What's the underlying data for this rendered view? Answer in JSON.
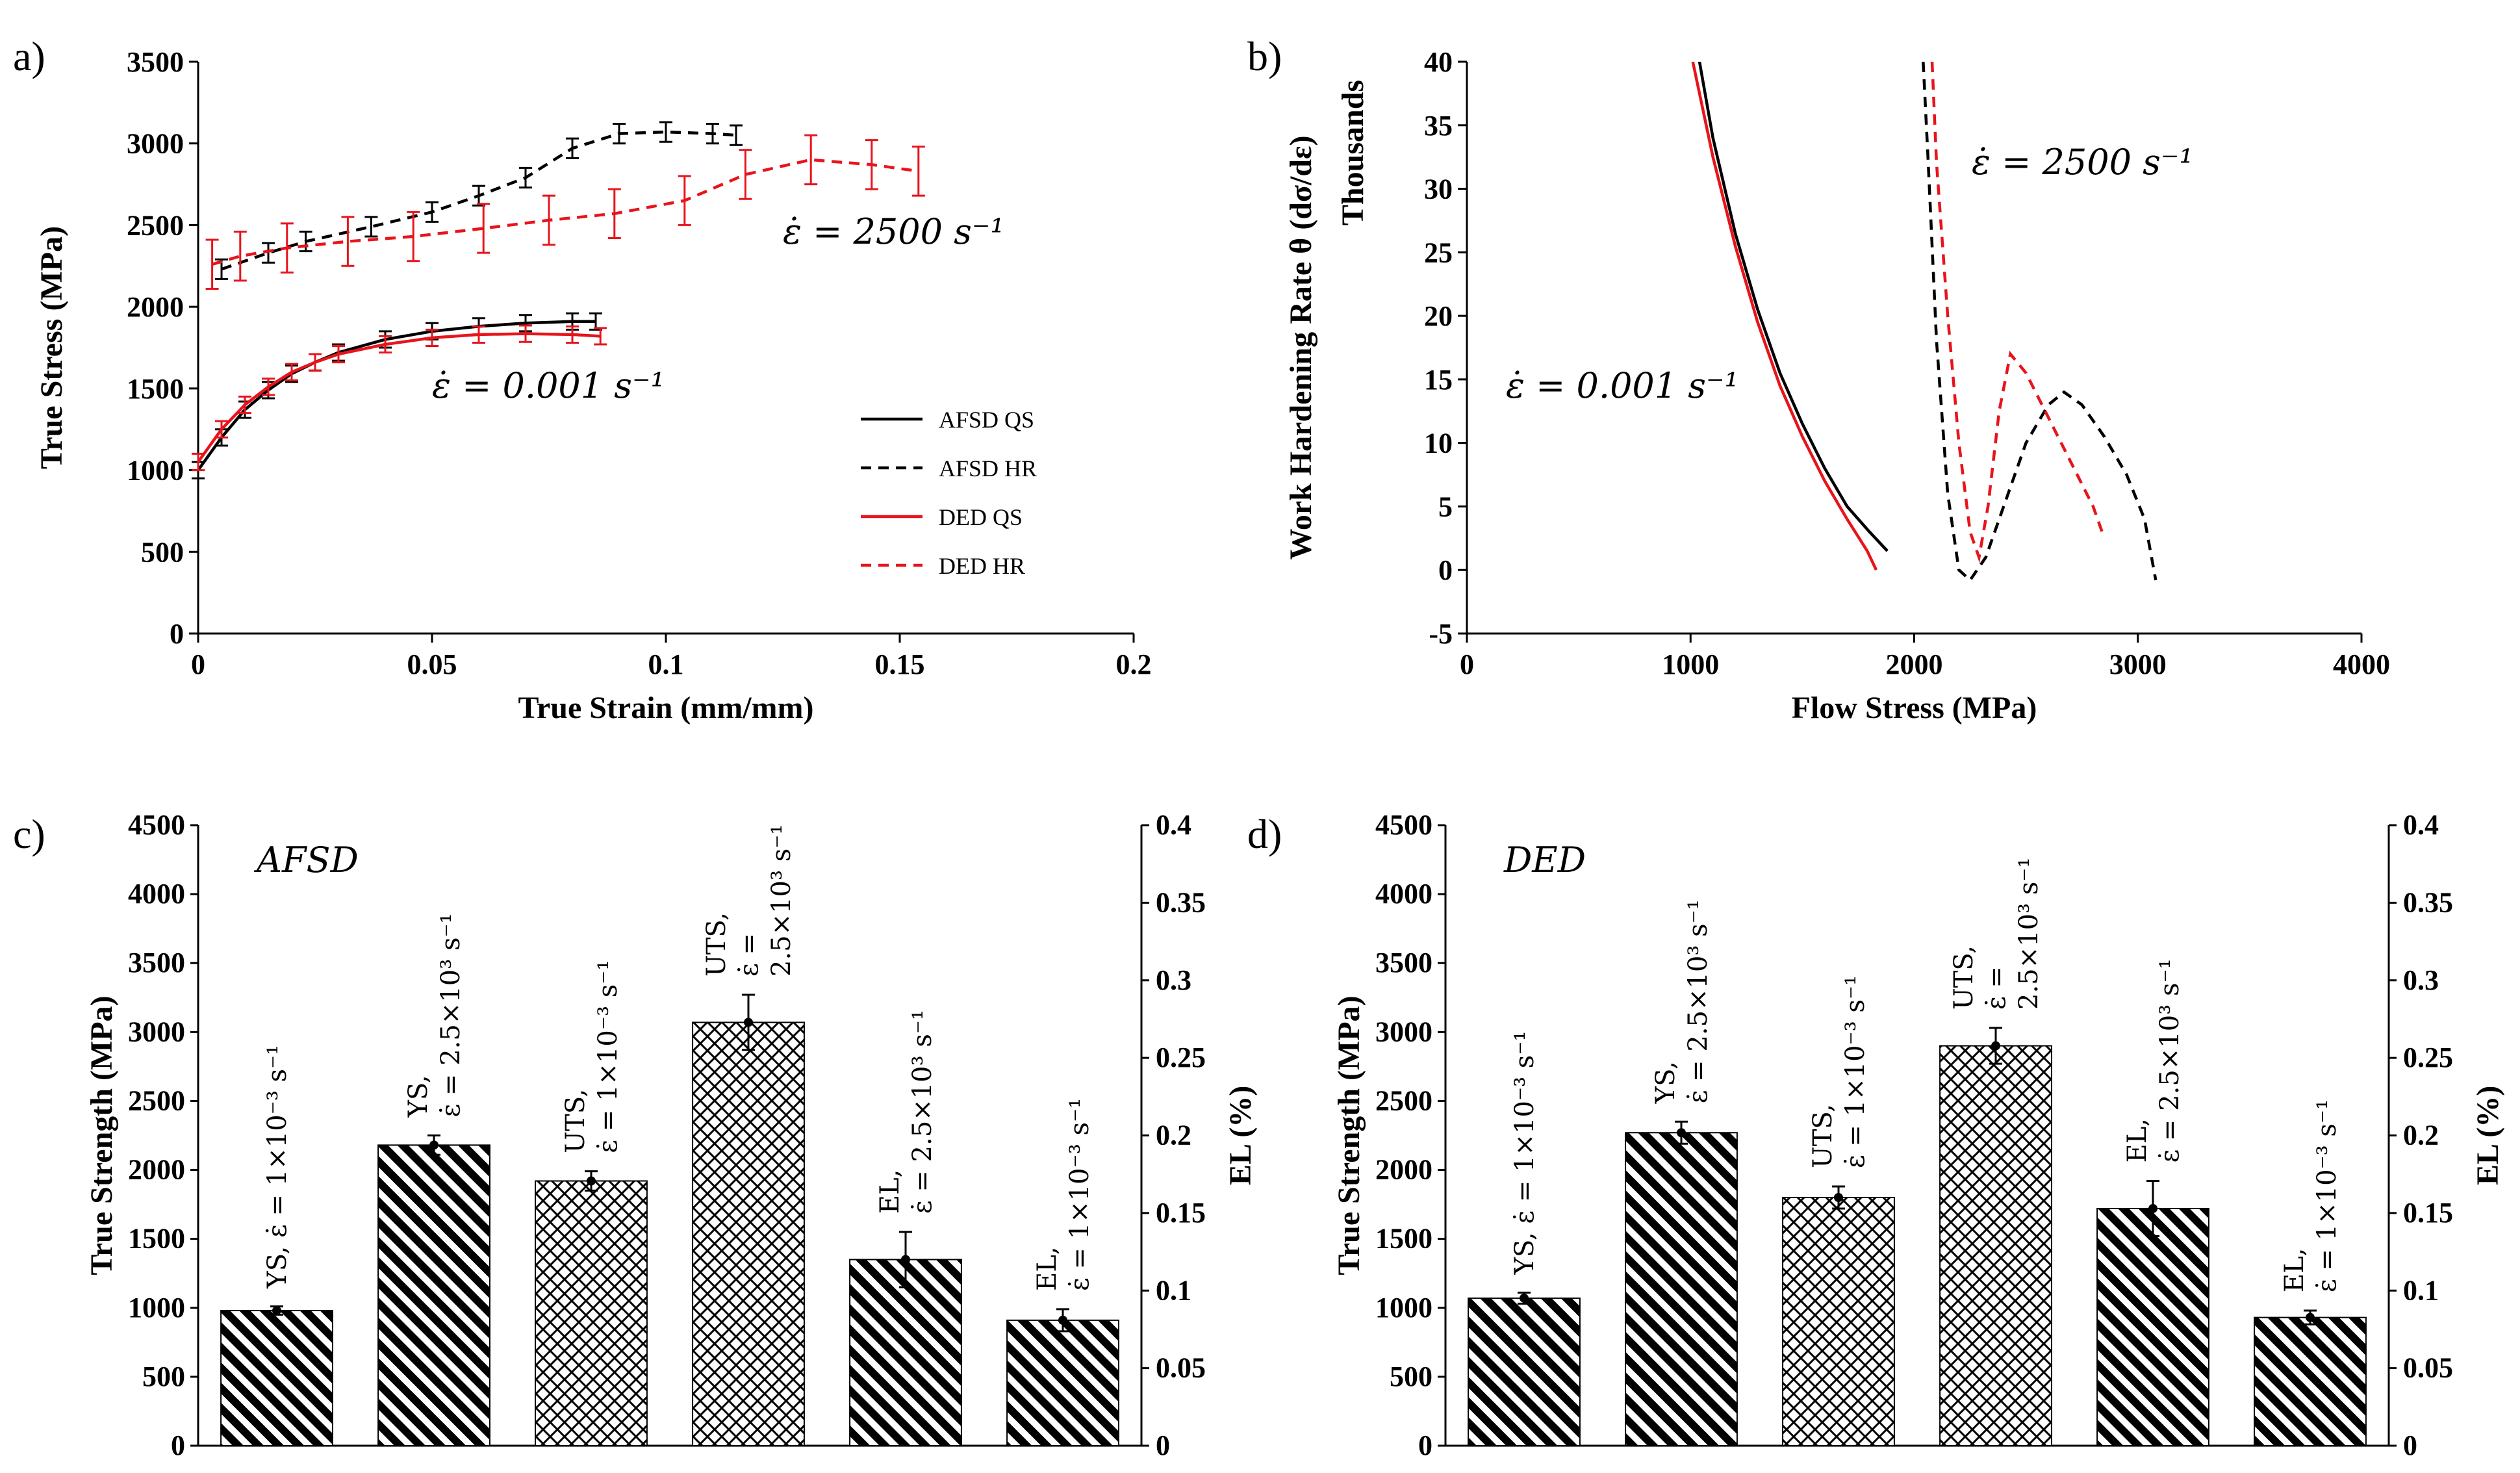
{
  "chart_data": [
    {
      "id": "a",
      "panel_label": "a)",
      "type": "line",
      "xlabel": "True Strain (mm/mm)",
      "ylabel": "True Stress (MPa)",
      "xlim": [
        0,
        0.2
      ],
      "ylim": [
        0,
        3500
      ],
      "xticks": [
        "0",
        "0.05",
        "0.1",
        "0.15",
        "0.2"
      ],
      "yticks": [
        "0",
        "500",
        "1000",
        "1500",
        "2000",
        "2500",
        "3000",
        "3500"
      ],
      "annotations": [
        "ε̇ = 2500 s⁻¹",
        "ε̇ = 0.001 s⁻¹"
      ],
      "legend": [
        "AFSD QS",
        "AFSD HR",
        "DED QS",
        "DED HR"
      ],
      "series": [
        {
          "name": "AFSD QS",
          "color": "#000000",
          "dashed": false,
          "x": [
            0,
            0.005,
            0.01,
            0.015,
            0.02,
            0.025,
            0.03,
            0.04,
            0.05,
            0.06,
            0.07,
            0.08,
            0.085
          ],
          "y": [
            1000,
            1200,
            1370,
            1490,
            1590,
            1660,
            1720,
            1800,
            1850,
            1880,
            1900,
            1910,
            1910
          ],
          "err": 50
        },
        {
          "name": "AFSD HR",
          "color": "#000000",
          "dashed": true,
          "x": [
            0.005,
            0.015,
            0.023,
            0.037,
            0.05,
            0.06,
            0.07,
            0.08,
            0.09,
            0.1,
            0.11,
            0.115
          ],
          "y": [
            2230,
            2330,
            2400,
            2490,
            2580,
            2680,
            2790,
            2970,
            3060,
            3070,
            3060,
            3050
          ],
          "err": 60
        },
        {
          "name": "DED QS",
          "color": "#e8141b",
          "dashed": false,
          "x": [
            0,
            0.005,
            0.01,
            0.015,
            0.02,
            0.025,
            0.03,
            0.04,
            0.05,
            0.06,
            0.07,
            0.08,
            0.086
          ],
          "y": [
            1050,
            1250,
            1400,
            1510,
            1600,
            1660,
            1710,
            1770,
            1810,
            1830,
            1835,
            1830,
            1820
          ],
          "err": 50
        },
        {
          "name": "DED HR",
          "color": "#e8141b",
          "dashed": true,
          "x": [
            0.003,
            0.009,
            0.019,
            0.032,
            0.046,
            0.061,
            0.075,
            0.089,
            0.104,
            0.117,
            0.131,
            0.144,
            0.154
          ],
          "y": [
            2260,
            2310,
            2360,
            2400,
            2430,
            2480,
            2530,
            2570,
            2650,
            2810,
            2900,
            2870,
            2830
          ],
          "err": 150
        }
      ]
    },
    {
      "id": "b",
      "panel_label": "b)",
      "type": "line",
      "xlabel": "Flow Stress (MPa)",
      "ylabel": "Work Hardening Rate θ (dσ/dε)",
      "y_unit_label": "Thousands",
      "xlim": [
        0,
        4000
      ],
      "ylim": [
        -5,
        40
      ],
      "xticks": [
        "0",
        "1000",
        "2000",
        "3000",
        "4000"
      ],
      "yticks": [
        "-5",
        "0",
        "5",
        "10",
        "15",
        "20",
        "25",
        "30",
        "35",
        "40"
      ],
      "annotations": [
        "ε̇ = 2500 s⁻¹",
        "ε̇ = 0.001 s⁻¹"
      ],
      "series": [
        {
          "name": "AFSD QS",
          "color": "#000000",
          "dashed": false,
          "x": [
            1040,
            1100,
            1200,
            1300,
            1400,
            1500,
            1600,
            1700,
            1800,
            1880
          ],
          "y": [
            40,
            34,
            26.5,
            20.5,
            15.5,
            11.5,
            8,
            5,
            3,
            1.5
          ]
        },
        {
          "name": "DED QS",
          "color": "#e8141b",
          "dashed": false,
          "x": [
            1010,
            1100,
            1200,
            1300,
            1400,
            1500,
            1600,
            1700,
            1790,
            1830
          ],
          "y": [
            40,
            32.5,
            25.5,
            19.5,
            14.5,
            10.5,
            7,
            4,
            1.5,
            0
          ]
        },
        {
          "name": "AFSD HR",
          "color": "#000000",
          "dashed": true,
          "x": [
            2040,
            2060,
            2100,
            2150,
            2200,
            2250,
            2320,
            2400,
            2500,
            2600,
            2670,
            2750,
            2850,
            2950,
            3030,
            3080
          ],
          "y": [
            40,
            33,
            18,
            6,
            0,
            -0.8,
            1,
            5,
            10,
            13,
            14,
            13,
            10.5,
            7.5,
            4,
            -0.8
          ]
        },
        {
          "name": "DED HR",
          "color": "#e8141b",
          "dashed": true,
          "x": [
            2080,
            2100,
            2150,
            2200,
            2250,
            2290,
            2330,
            2380,
            2430,
            2500,
            2600,
            2700,
            2800,
            2850
          ],
          "y": [
            40,
            32,
            20,
            10,
            3,
            1,
            5,
            12.5,
            17,
            15.5,
            12,
            8.5,
            5,
            2.5
          ]
        }
      ]
    },
    {
      "id": "c",
      "panel_label": "c)",
      "type": "bar",
      "title": "AFSD",
      "ylabel": "True Strength (MPa)",
      "y2label": "EL (%)",
      "ylim": [
        0,
        4500
      ],
      "y2lim": [
        0,
        0.4
      ],
      "yticks": [
        "0",
        "500",
        "1000",
        "1500",
        "2000",
        "2500",
        "3000",
        "3500",
        "4000",
        "4500"
      ],
      "y2ticks": [
        "0",
        "0.05",
        "0.1",
        "0.15",
        "0.2",
        "0.25",
        "0.3",
        "0.35",
        "0.4"
      ],
      "bars": [
        {
          "label_lines": [
            "YS, ε̇ = 1×10⁻³ s⁻¹"
          ],
          "value": 980,
          "err": 30,
          "pattern": "diag"
        },
        {
          "label_lines": [
            "YS,",
            "ε̇ = 2.5×10³ s⁻¹"
          ],
          "value": 2180,
          "err": 70,
          "pattern": "diag"
        },
        {
          "label_lines": [
            "UTS,",
            "ε̇ = 1×10⁻³ s⁻¹"
          ],
          "value": 1920,
          "err": 70,
          "pattern": "cross"
        },
        {
          "label_lines": [
            "UTS,",
            "ε̇ =",
            "2.5×10³ s⁻¹"
          ],
          "value": 3070,
          "err": 200,
          "pattern": "cross"
        },
        {
          "label_lines": [
            "EL,",
            "ε̇ = 2.5×10³ s⁻¹"
          ],
          "value": 1350,
          "err": 200,
          "pattern": "diag"
        },
        {
          "label_lines": [
            "EL,",
            "ε̇ = 1×10⁻³ s⁻¹"
          ],
          "value": 910,
          "err": 80,
          "pattern": "diag"
        }
      ]
    },
    {
      "id": "d",
      "panel_label": "d)",
      "type": "bar",
      "title": "DED",
      "ylabel": "True Strength (MPa)",
      "y2label": "EL (%)",
      "ylim": [
        0,
        4500
      ],
      "y2lim": [
        0,
        0.4
      ],
      "yticks": [
        "0",
        "500",
        "1000",
        "1500",
        "2000",
        "2500",
        "3000",
        "3500",
        "4000",
        "4500"
      ],
      "y2ticks": [
        "0",
        "0.05",
        "0.1",
        "0.15",
        "0.2",
        "0.25",
        "0.3",
        "0.35",
        "0.4"
      ],
      "bars": [
        {
          "label_lines": [
            "YS, ε̇ = 1×10⁻³ s⁻¹"
          ],
          "value": 1070,
          "err": 40,
          "pattern": "diag"
        },
        {
          "label_lines": [
            "YS,",
            "ε̇ = 2.5×10³ s⁻¹"
          ],
          "value": 2270,
          "err": 80,
          "pattern": "diag"
        },
        {
          "label_lines": [
            "UTS,",
            "ε̇ = 1×10⁻³ s⁻¹"
          ],
          "value": 1800,
          "err": 80,
          "pattern": "cross"
        },
        {
          "label_lines": [
            "UTS,",
            "ε̇ =",
            "2.5×10³ s⁻¹"
          ],
          "value": 2900,
          "err": 130,
          "pattern": "cross"
        },
        {
          "label_lines": [
            "EL,",
            "ε̇ = 2.5×10³ s⁻¹"
          ],
          "value": 1720,
          "err": 200,
          "pattern": "diag"
        },
        {
          "label_lines": [
            "EL,",
            "ε̇ = 1×10⁻³ s⁻¹"
          ],
          "value": 930,
          "err": 50,
          "pattern": "diag"
        }
      ]
    }
  ]
}
